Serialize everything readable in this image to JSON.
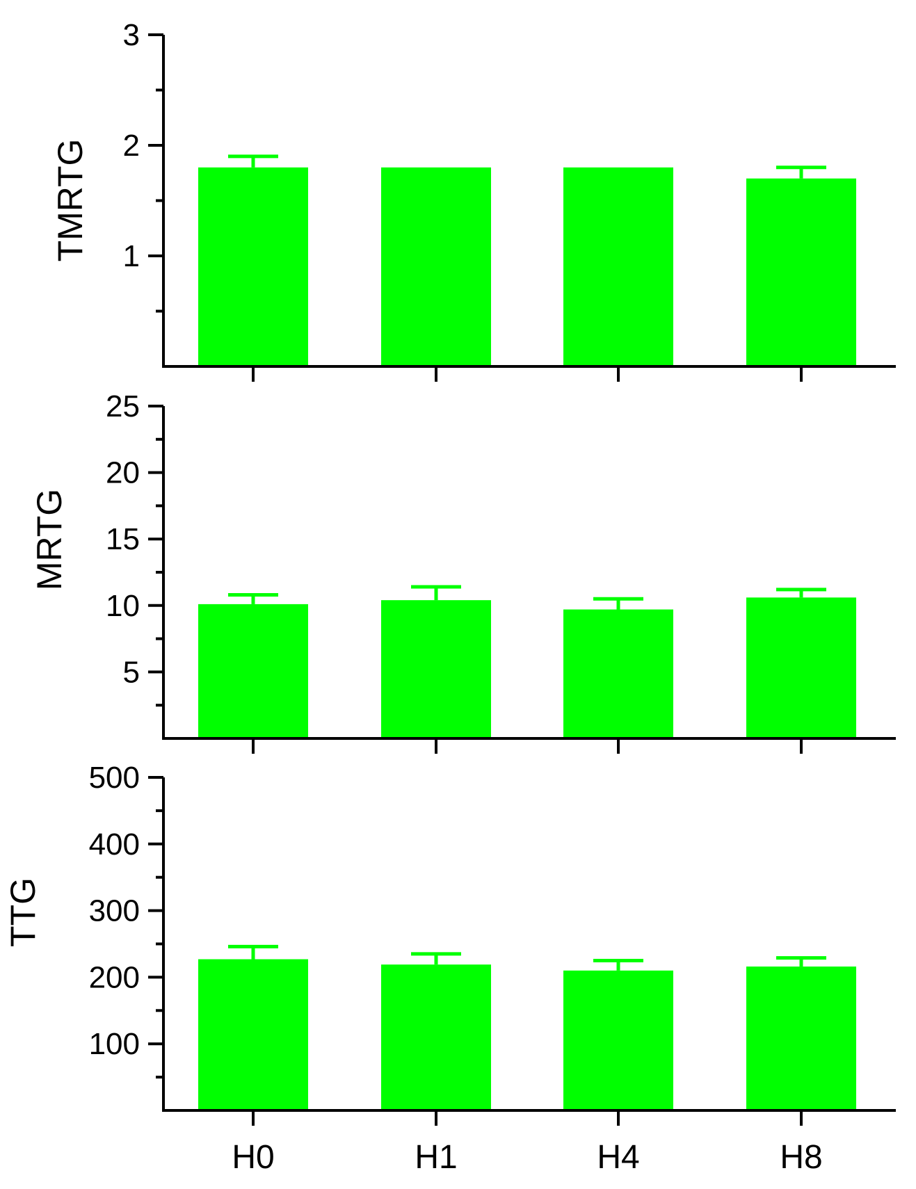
{
  "bar_color": "#00ff00",
  "chart_data": [
    {
      "type": "bar",
      "categories": [
        "H0",
        "H1",
        "H4",
        "H8"
      ],
      "values": [
        1.8,
        1.8,
        1.8,
        1.7
      ],
      "errors": [
        0.1,
        0.0,
        0.0,
        0.1
      ],
      "ylabel": "TMRTG",
      "ylim": [
        0,
        3
      ],
      "yticks": [
        1,
        2,
        3
      ],
      "ytick_labels": [
        "1",
        "2",
        "3"
      ],
      "show_category_labels": false
    },
    {
      "type": "bar",
      "categories": [
        "H0",
        "H1",
        "H4",
        "H8"
      ],
      "values": [
        10.1,
        10.4,
        9.7,
        10.6
      ],
      "errors": [
        0.7,
        1.0,
        0.8,
        0.6
      ],
      "ylabel": "MRTG",
      "ylim": [
        0,
        25
      ],
      "yticks": [
        5,
        10,
        15,
        20,
        25
      ],
      "ytick_labels": [
        "5",
        "10",
        "15",
        "20",
        "25"
      ],
      "show_category_labels": false
    },
    {
      "type": "bar",
      "categories": [
        "H0",
        "H1",
        "H4",
        "H8"
      ],
      "values": [
        227,
        219,
        210,
        216
      ],
      "errors": [
        19,
        16,
        15,
        13
      ],
      "ylabel": "TTG",
      "ylim": [
        0,
        500
      ],
      "yticks": [
        100,
        200,
        300,
        400,
        500
      ],
      "ytick_labels": [
        "100",
        "200",
        "300",
        "400",
        "500"
      ],
      "show_category_labels": true
    }
  ]
}
